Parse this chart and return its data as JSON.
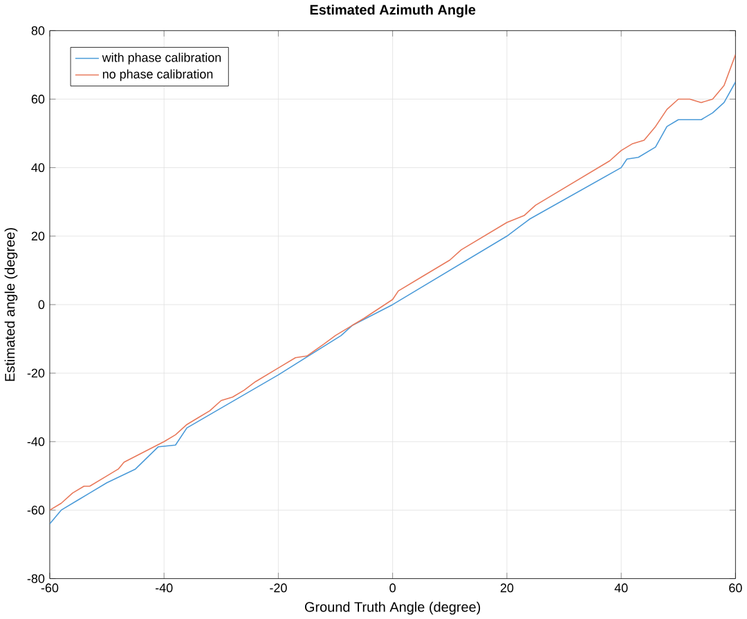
{
  "chart_data": {
    "type": "line",
    "title": "Estimated Azimuth Angle",
    "xlabel": "Ground Truth Angle (degree)",
    "ylabel": "Estimated angle (degree)",
    "xlim": [
      -60,
      60
    ],
    "xticks": [
      -60,
      -40,
      -20,
      0,
      20,
      40,
      60
    ],
    "ylim": [
      -80,
      80
    ],
    "yticks": [
      -80,
      -60,
      -40,
      -20,
      0,
      20,
      40,
      60,
      80
    ],
    "grid": true,
    "legend": "top left",
    "marker": "none",
    "line_style": "solid",
    "series": [
      {
        "name": "with phase calibration",
        "color": "#4a9ad8",
        "x": [
          -60,
          -58,
          -55,
          -53,
          -50,
          -45,
          -41,
          -38,
          -36,
          -20,
          -9,
          -7,
          0,
          20,
          22,
          24,
          40,
          41,
          43,
          46,
          48,
          50,
          54,
          56,
          58,
          60
        ],
        "values": [
          -64,
          -60,
          -57,
          -55,
          -52,
          -48,
          -41.5,
          -41,
          -36,
          -20.5,
          -9,
          -6,
          0,
          20,
          22.5,
          25,
          40,
          42.5,
          43,
          46,
          52,
          54,
          54,
          56,
          59,
          65
        ]
      },
      {
        "name": "no phase calibration",
        "color": "#e8785a",
        "x": [
          -60,
          -58,
          -56,
          -54,
          -53,
          -50,
          -48,
          -47,
          -40,
          -38,
          -36,
          -34,
          -32,
          -30,
          -28,
          -26,
          -24,
          -20,
          -17,
          -15,
          -12,
          -10,
          -5,
          0,
          1,
          3,
          5,
          10,
          12,
          20,
          23,
          25,
          38,
          40,
          42,
          44,
          46,
          48,
          50,
          52,
          54,
          56,
          58,
          60
        ],
        "values": [
          -60,
          -58,
          -55,
          -53,
          -53,
          -50,
          -48,
          -46,
          -40,
          -38,
          -35,
          -33,
          -31,
          -28,
          -27,
          -25,
          -22.5,
          -18.5,
          -15.5,
          -15,
          -11.5,
          -9,
          -4,
          1.5,
          4,
          6,
          8,
          13,
          16,
          24,
          26,
          29,
          42,
          45,
          47,
          48,
          52,
          57,
          60,
          60,
          59,
          60,
          64,
          73
        ]
      }
    ]
  }
}
